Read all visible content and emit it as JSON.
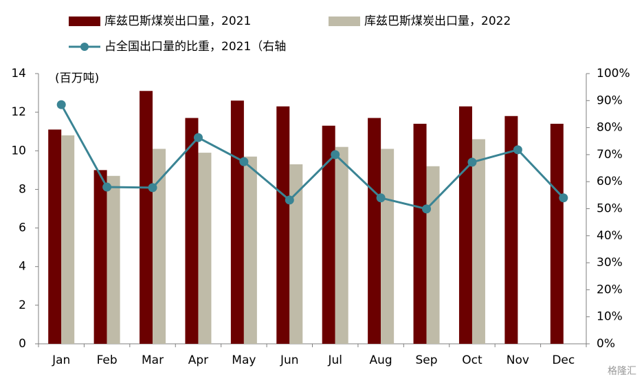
{
  "chart_data": {
    "type": "bar-line",
    "unit_label": "(百万吨)",
    "watermark": "格隆汇",
    "categories": [
      "Jan",
      "Feb",
      "Mar",
      "Apr",
      "May",
      "Jun",
      "Jul",
      "Aug",
      "Sep",
      "Oct",
      "Nov",
      "Dec"
    ],
    "series": [
      {
        "name": "库兹巴斯煤炭出口量，2021",
        "type": "bar",
        "color": "#6b0000",
        "values": [
          11.1,
          9.0,
          13.1,
          11.7,
          12.6,
          12.3,
          11.3,
          11.7,
          11.4,
          12.3,
          11.8,
          11.4
        ]
      },
      {
        "name": "库兹巴斯煤炭出口量，2022",
        "type": "bar",
        "color": "#bfbba8",
        "values": [
          10.8,
          8.7,
          10.1,
          9.9,
          9.7,
          9.3,
          10.2,
          10.1,
          9.2,
          10.6,
          null,
          null
        ]
      },
      {
        "name": "占全国出口量的比重，2021（右轴",
        "type": "line",
        "axis": "y2",
        "color": "#3a8494",
        "values": [
          88.5,
          58,
          57.8,
          76.3,
          67.4,
          53.2,
          70,
          54,
          49.9,
          67.2,
          71.8,
          54
        ]
      }
    ],
    "ylim": [
      0,
      14
    ],
    "yticks": [
      0,
      2,
      4,
      6,
      8,
      10,
      12,
      14
    ],
    "y2lim": [
      0,
      100
    ],
    "y2ticks": [
      {
        "value": 0,
        "label": "0%"
      },
      {
        "value": 10,
        "label": "10%"
      },
      {
        "value": 20,
        "label": "20%"
      },
      {
        "value": 30,
        "label": "30%"
      },
      {
        "value": 40,
        "label": "40%"
      },
      {
        "value": 50,
        "label": "50%"
      },
      {
        "value": 60,
        "label": "60%"
      },
      {
        "value": 70,
        "label": "70%"
      },
      {
        "value": 80,
        "label": "80%"
      },
      {
        "value": 90,
        "label": "90%"
      },
      {
        "value": 100,
        "label": "100%"
      }
    ],
    "grid": false
  }
}
